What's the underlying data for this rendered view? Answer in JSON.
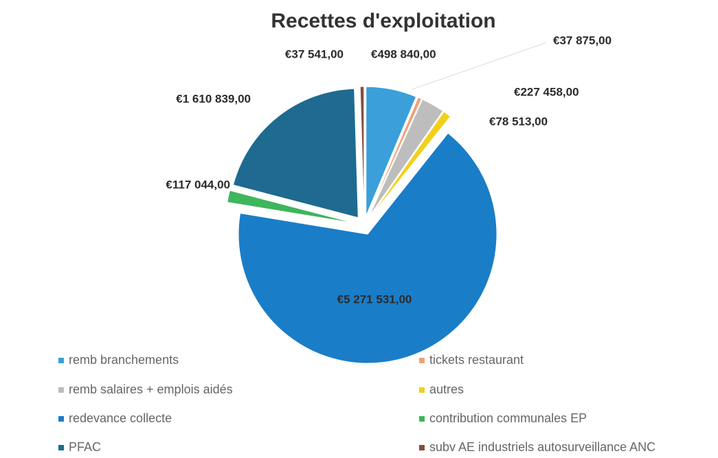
{
  "chart_data": {
    "type": "pie",
    "title": "Recettes d'exploitation",
    "categories": [
      "remb branchements",
      "tickets restaurant",
      "remb salaires + emplois aidés",
      "autres",
      "redevance collecte",
      "contribution communales EP",
      "PFAC",
      "subv AE industriels autosurveillance ANC"
    ],
    "values": [
      498840,
      37875,
      227458,
      78513,
      5271531,
      117044,
      1610839,
      37541
    ],
    "value_labels": [
      "€498 840,00",
      "€37 875,00",
      "€227 458,00",
      "€78 513,00",
      "€5 271 531,00",
      "€117 044,00",
      "€1 610 839,00",
      "€37 541,00"
    ],
    "colors": [
      "#3b9fd9",
      "#f0a07a",
      "#bdbdbd",
      "#f3cf1a",
      "#1a7dc8",
      "#3fb55c",
      "#1f6a90",
      "#8a4b3b"
    ]
  }
}
